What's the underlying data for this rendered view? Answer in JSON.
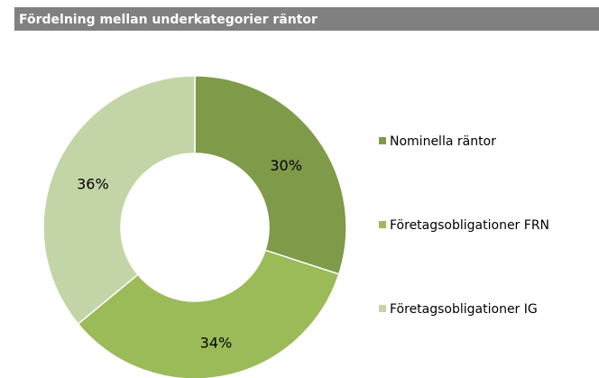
{
  "chart_data": {
    "type": "pie",
    "title": "Fördelning mellan underkategorier räntor",
    "categories": [
      "Nominella räntor",
      "Företagsobligationer FRN",
      "Företagsobligationer IG"
    ],
    "values": [
      30,
      34,
      36
    ],
    "value_labels": [
      "30%",
      "34%",
      "36%"
    ],
    "colors": [
      "#7f9a48",
      "#9bbb59",
      "#c3d5a6"
    ],
    "donut": true,
    "legend": "right"
  }
}
